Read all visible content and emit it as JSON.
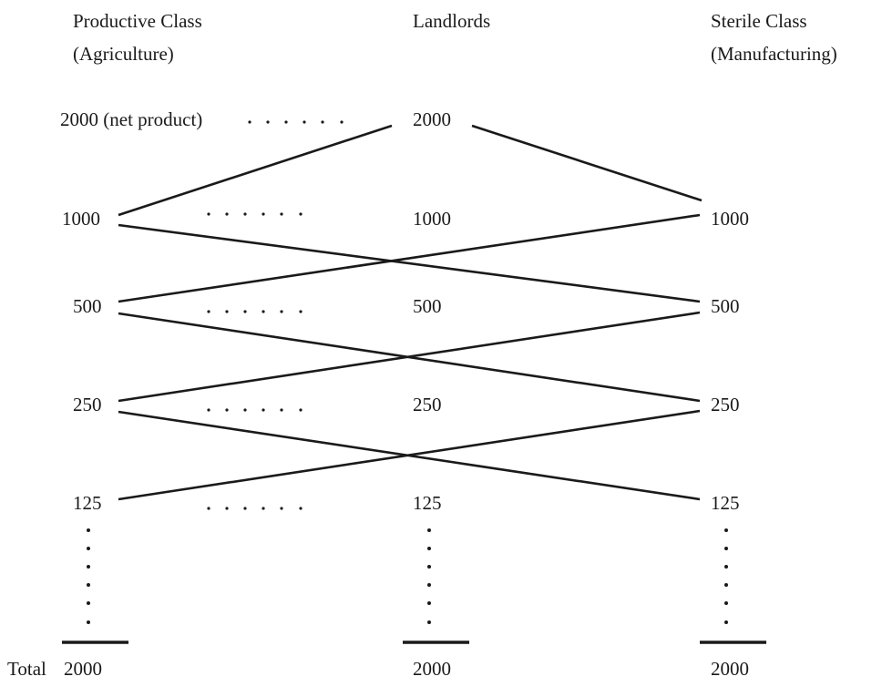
{
  "columns": {
    "productive": {
      "title_line1": "Productive Class",
      "title_line2": "(Agriculture)"
    },
    "landlords": {
      "title_line1": "Landlords"
    },
    "sterile": {
      "title_line1": "Sterile Class",
      "title_line2": "(Manufacturing)"
    }
  },
  "rows": [
    {
      "productive": "2000 (net product)",
      "landlords": "2000",
      "sterile": ""
    },
    {
      "productive": "1000",
      "landlords": "1000",
      "sterile": "1000"
    },
    {
      "productive": "500",
      "landlords": "500",
      "sterile": "500"
    },
    {
      "productive": "250",
      "landlords": "250",
      "sterile": "250"
    },
    {
      "productive": "125",
      "landlords": "125",
      "sterile": "125"
    }
  ],
  "totals": {
    "label": "Total",
    "productive": "2000",
    "landlords": "2000",
    "sterile": "2000"
  }
}
